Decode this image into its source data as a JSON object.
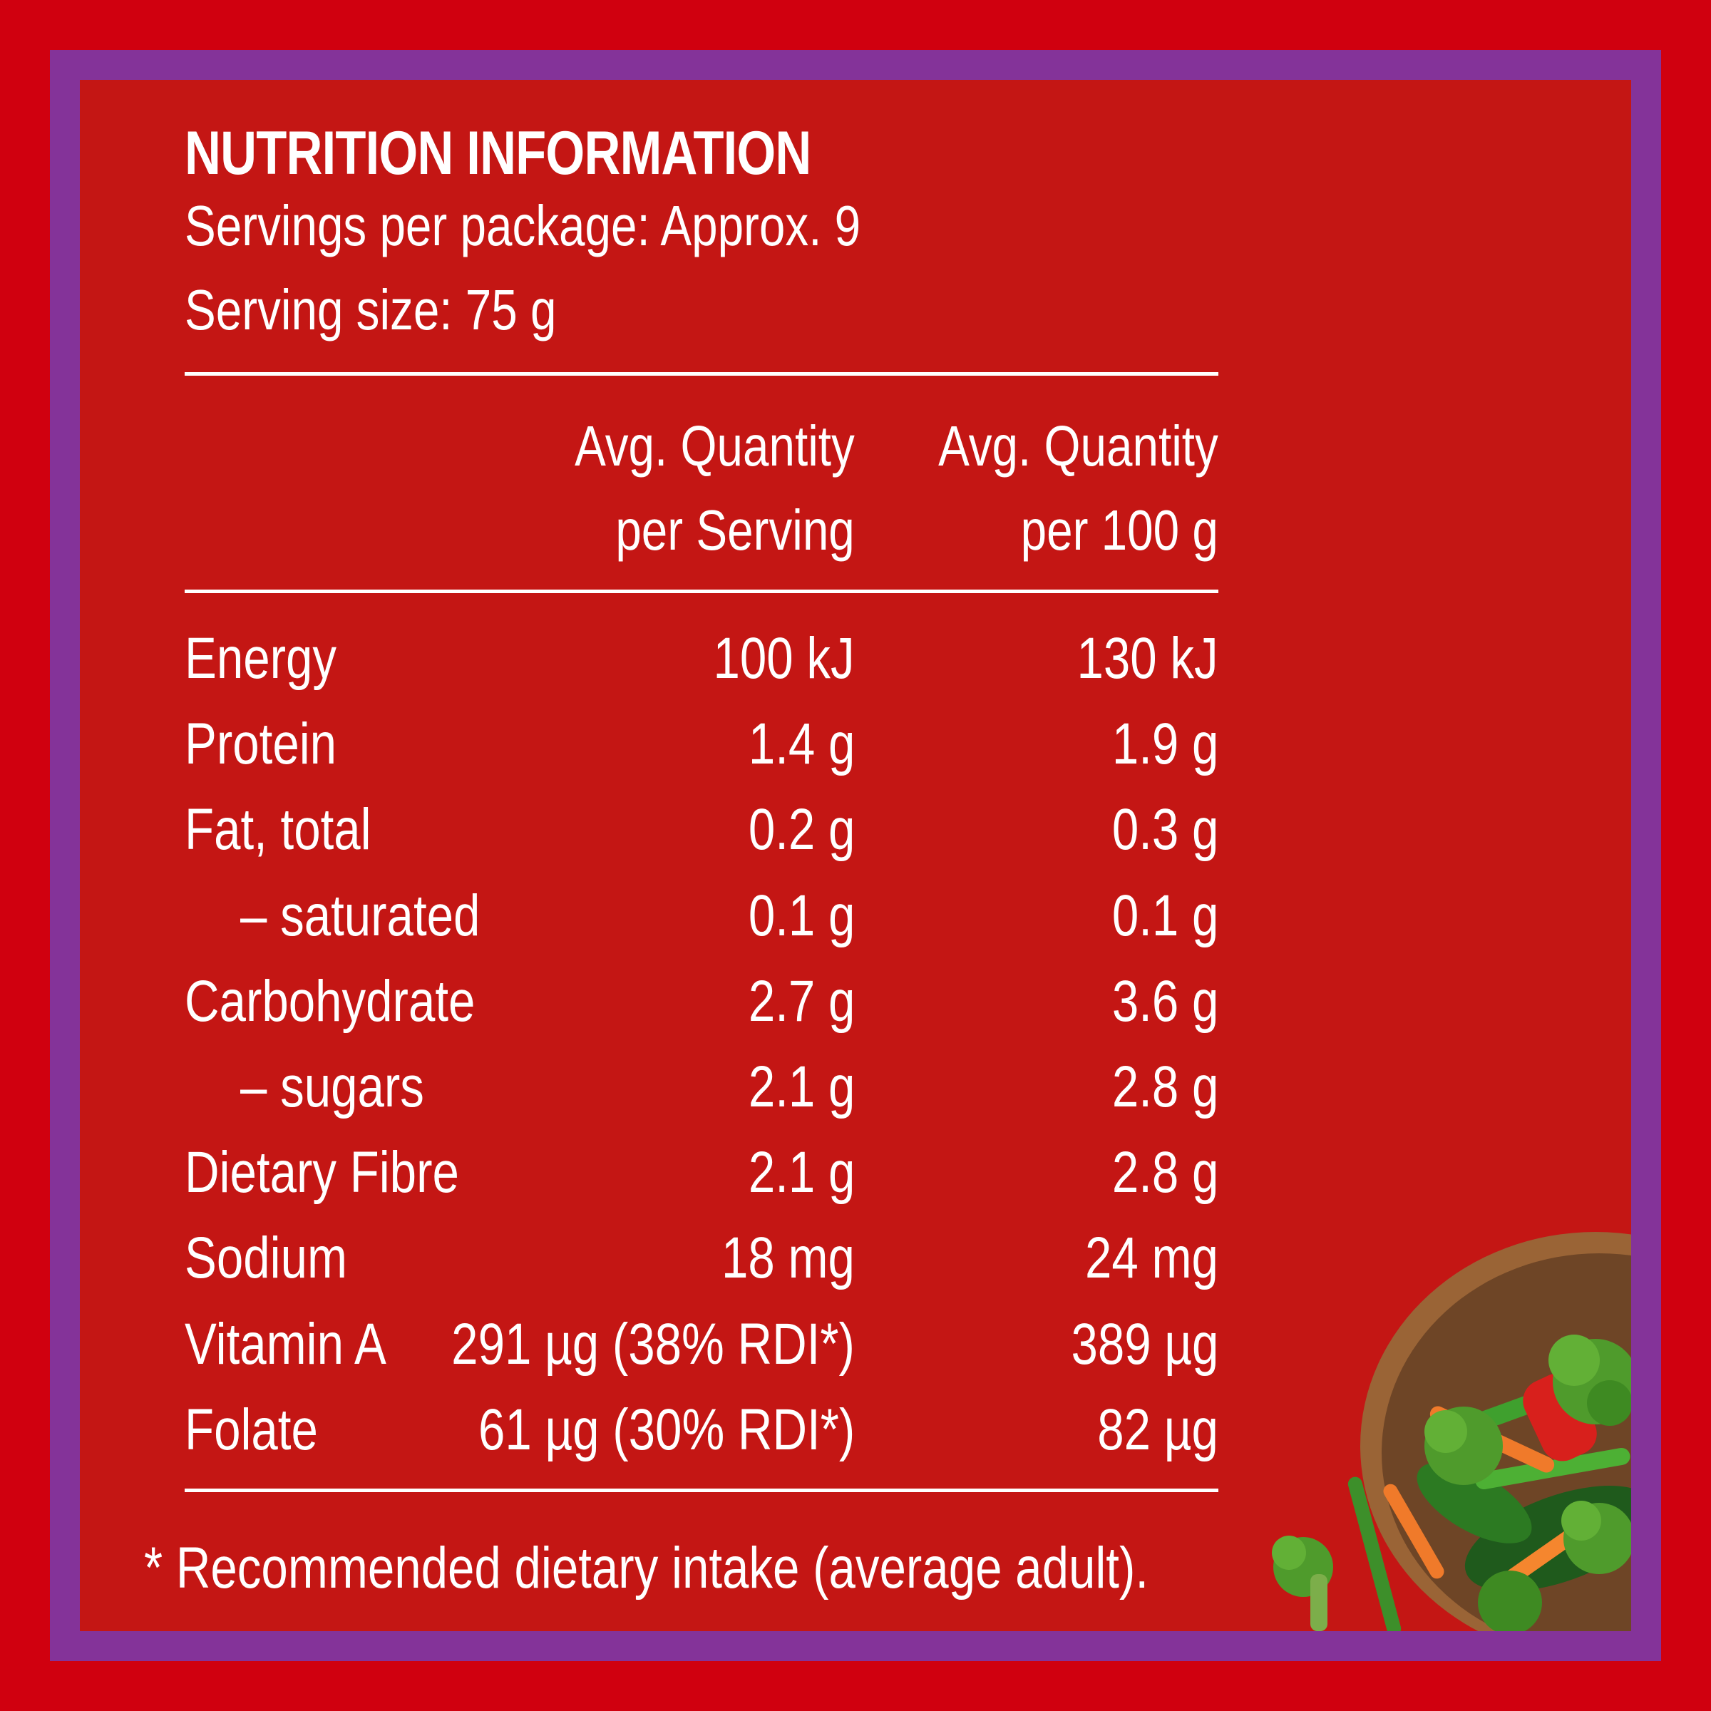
{
  "label": {
    "title": "NUTRITION INFORMATION",
    "servings_per_package": "Servings per package: Approx. 9",
    "serving_size": "Serving size: 75 g",
    "column_headers": [
      {
        "line1": "Avg. Quantity",
        "line2": "per Serving"
      },
      {
        "line1": "Avg. Quantity",
        "line2": "per 100 g"
      }
    ],
    "rows": [
      {
        "nutrient": "Energy",
        "per_serving": "100 kJ",
        "per_100g": "130 kJ"
      },
      {
        "nutrient": "Protein",
        "per_serving": "1.4 g",
        "per_100g": "1.9 g"
      },
      {
        "nutrient": "Fat, total",
        "per_serving": "0.2 g",
        "per_100g": "0.3 g"
      },
      {
        "nutrient": "– saturated",
        "per_serving": "0.1 g",
        "per_100g": "0.1 g"
      },
      {
        "nutrient": "Carbohydrate",
        "per_serving": "2.7 g",
        "per_100g": "3.6 g"
      },
      {
        "nutrient": "– sugars",
        "per_serving": "2.1 g",
        "per_100g": "2.8 g"
      },
      {
        "nutrient": "Dietary Fibre",
        "per_serving": "2.1 g",
        "per_100g": "2.8 g"
      },
      {
        "nutrient": "Sodium",
        "per_serving": "18 mg",
        "per_100g": "24 mg"
      },
      {
        "nutrient": "Vitamin A",
        "per_serving": "291 µg (38% RDI*)",
        "per_100g": "389 µg"
      },
      {
        "nutrient": "Folate",
        "per_serving": "61 µg (30% RDI*)",
        "per_100g": "82 µg"
      }
    ],
    "footnote": "* Recommended dietary intake (average adult)."
  },
  "colors": {
    "outer_border": "#d0000f",
    "frame": "#843399",
    "panel": "#c41614",
    "text": "#ffffff"
  },
  "decoration": {
    "icon": "vegetable-bowl-icon"
  }
}
